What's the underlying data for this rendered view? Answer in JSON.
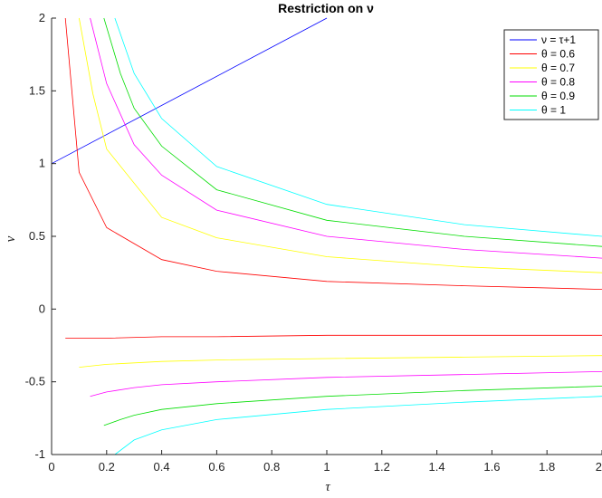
{
  "chart_data": {
    "type": "line",
    "title": "Restriction on ν",
    "xlabel": "τ",
    "ylabel": "ν",
    "xlim": [
      0,
      2
    ],
    "ylim": [
      -1,
      2
    ],
    "xticks": [
      "0",
      "0.2",
      "0.4",
      "0.6",
      "0.8",
      "1",
      "1.2",
      "1.4",
      "1.6",
      "1.8",
      "2"
    ],
    "yticks": [
      "-1",
      "-0.5",
      "0",
      "0.5",
      "1",
      "1.5",
      "2"
    ],
    "grid": false,
    "legend_position": "top-right",
    "series": [
      {
        "name": "ν = τ+1",
        "color": "#0000ff",
        "x": [
          0,
          1
        ],
        "y": [
          1,
          2
        ]
      },
      {
        "name": "θ = 0.6",
        "color": "#ff0000",
        "x": [
          0.05,
          0.1,
          0.2,
          0.4,
          0.6,
          1.0,
          1.5,
          2.0
        ],
        "y_upper": [
          2.0,
          0.94,
          0.56,
          0.34,
          0.26,
          0.19,
          0.16,
          0.135
        ],
        "y_lower": [
          -0.2,
          -0.2,
          -0.2,
          -0.19,
          -0.19,
          -0.18,
          -0.18,
          -0.18
        ]
      },
      {
        "name": "θ = 0.7",
        "color": "#ffff00",
        "x": [
          0.1,
          0.15,
          0.2,
          0.4,
          0.6,
          1.0,
          1.5,
          2.0
        ],
        "y_upper": [
          2.0,
          1.48,
          1.1,
          0.63,
          0.49,
          0.36,
          0.29,
          0.25
        ],
        "y_lower": [
          -0.4,
          -0.39,
          -0.38,
          -0.36,
          -0.35,
          -0.34,
          -0.33,
          -0.32
        ]
      },
      {
        "name": "θ = 0.8",
        "color": "#ff00ff",
        "x": [
          0.14,
          0.2,
          0.3,
          0.4,
          0.6,
          1.0,
          1.5,
          2.0
        ],
        "y_upper": [
          2.0,
          1.55,
          1.13,
          0.92,
          0.68,
          0.5,
          0.41,
          0.35
        ],
        "y_lower": [
          -0.6,
          -0.57,
          -0.54,
          -0.52,
          -0.5,
          -0.47,
          -0.45,
          -0.43
        ]
      },
      {
        "name": "θ = 0.9",
        "color": "#00dd00",
        "x": [
          0.19,
          0.25,
          0.3,
          0.4,
          0.6,
          1.0,
          1.5,
          2.0
        ],
        "y_upper": [
          2.0,
          1.62,
          1.38,
          1.12,
          0.82,
          0.61,
          0.5,
          0.43
        ],
        "y_lower": [
          -0.8,
          -0.76,
          -0.73,
          -0.69,
          -0.65,
          -0.6,
          -0.56,
          -0.53
        ]
      },
      {
        "name": "θ = 1",
        "color": "#00ffff",
        "x": [
          0.23,
          0.3,
          0.4,
          0.6,
          1.0,
          1.5,
          2.0
        ],
        "y_upper": [
          2.0,
          1.62,
          1.31,
          0.98,
          0.72,
          0.58,
          0.5
        ],
        "y_lower": [
          -1.0,
          -0.9,
          -0.83,
          -0.76,
          -0.69,
          -0.64,
          -0.6
        ]
      }
    ]
  }
}
